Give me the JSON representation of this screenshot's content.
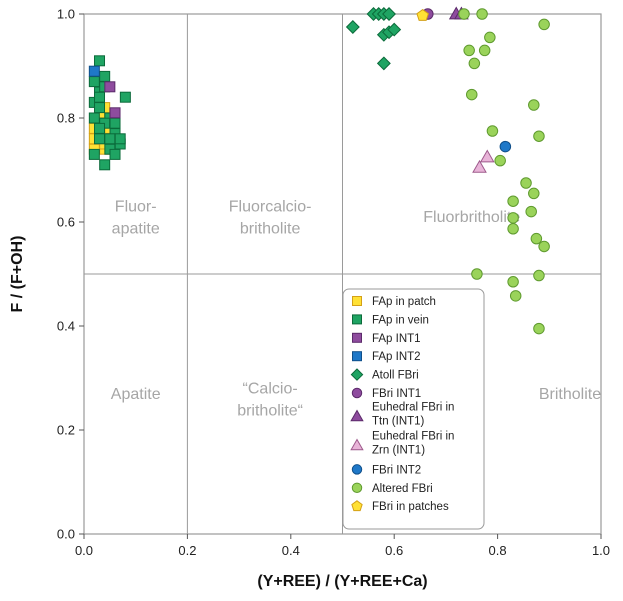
{
  "chart_data": {
    "type": "scatter",
    "xlabel": "(Y+REE) / (Y+REE+Ca)",
    "ylabel": "F / (F+OH)",
    "xlim": [
      0,
      1
    ],
    "ylim": [
      0,
      1
    ],
    "xticks": [
      "0.0",
      "0.2",
      "0.4",
      "0.6",
      "0.8",
      "1.0"
    ],
    "yticks": [
      "0.0",
      "0.2",
      "0.4",
      "0.6",
      "0.8",
      "1.0"
    ],
    "grid": "field boundary lines at x=0.2, x=0.5, y=0.5",
    "legend_position": "bottom-right, inside plot",
    "field_labels": [
      {
        "lines": [
          "Fluor-",
          "apatite"
        ],
        "x": 0.1,
        "y": 0.62
      },
      {
        "lines": [
          "Fluorcalcio-",
          "britholite"
        ],
        "x": 0.36,
        "y": 0.62
      },
      {
        "lines": [
          "Fluorbritholite"
        ],
        "x": 0.75,
        "y": 0.6
      },
      {
        "lines": [
          "Apatite"
        ],
        "x": 0.1,
        "y": 0.26
      },
      {
        "lines": [
          "“Calcio-",
          "britholite“"
        ],
        "x": 0.36,
        "y": 0.27
      },
      {
        "lines": [
          "Britholite"
        ],
        "x": 0.94,
        "y": 0.26
      }
    ],
    "series": [
      {
        "name": "FAp in patch",
        "marker": "square",
        "fill": "#ffe135",
        "stroke": "#d4a017",
        "points": [
          [
            0.02,
            0.78
          ],
          [
            0.03,
            0.8
          ],
          [
            0.04,
            0.82
          ],
          [
            0.02,
            0.76
          ],
          [
            0.03,
            0.75
          ],
          [
            0.04,
            0.74
          ],
          [
            0.05,
            0.78
          ],
          [
            0.02,
            0.74
          ],
          [
            0.03,
            0.81
          ],
          [
            0.04,
            0.75
          ]
        ]
      },
      {
        "name": "FAp in vein",
        "marker": "square",
        "fill": "#1fa463",
        "stroke": "#0b6a3a",
        "points": [
          [
            0.03,
            0.91
          ],
          [
            0.02,
            0.87
          ],
          [
            0.03,
            0.85
          ],
          [
            0.04,
            0.88
          ],
          [
            0.02,
            0.83
          ],
          [
            0.03,
            0.82
          ],
          [
            0.05,
            0.8
          ],
          [
            0.04,
            0.79
          ],
          [
            0.06,
            0.77
          ],
          [
            0.07,
            0.75
          ],
          [
            0.03,
            0.76
          ],
          [
            0.02,
            0.73
          ],
          [
            0.04,
            0.71
          ],
          [
            0.05,
            0.74
          ],
          [
            0.06,
            0.73
          ],
          [
            0.08,
            0.84
          ],
          [
            0.03,
            0.84
          ],
          [
            0.02,
            0.8
          ],
          [
            0.05,
            0.76
          ],
          [
            0.07,
            0.76
          ],
          [
            0.04,
            0.86
          ],
          [
            0.06,
            0.79
          ],
          [
            0.03,
            0.78
          ]
        ]
      },
      {
        "name": "FAp INT1",
        "marker": "square",
        "fill": "#8e4c9e",
        "stroke": "#5b2a6a",
        "points": [
          [
            0.05,
            0.86
          ],
          [
            0.06,
            0.81
          ]
        ]
      },
      {
        "name": "FAp INT2",
        "marker": "square",
        "fill": "#1f78c8",
        "stroke": "#0f4f8a",
        "points": [
          [
            0.02,
            0.89
          ]
        ]
      },
      {
        "name": "Atoll FBri",
        "marker": "diamond",
        "fill": "#1fa463",
        "stroke": "#0b6a3a",
        "points": [
          [
            0.52,
            0.975
          ],
          [
            0.56,
            1.0
          ],
          [
            0.57,
            1.0
          ],
          [
            0.58,
            1.0
          ],
          [
            0.59,
            1.0
          ],
          [
            0.58,
            0.96
          ],
          [
            0.59,
            0.965
          ],
          [
            0.6,
            0.97
          ],
          [
            0.58,
            0.905
          ]
        ]
      },
      {
        "name": "FBri INT1",
        "marker": "circle",
        "fill": "#8e4c9e",
        "stroke": "#5b2a6a",
        "points": [
          [
            0.665,
            1.0
          ]
        ]
      },
      {
        "name": "Euhedral FBri in Ttn (INT1)",
        "marker": "triangle",
        "fill": "#8e4c9e",
        "stroke": "#5b2a6a",
        "points": [
          [
            0.72,
            1.0
          ],
          [
            0.73,
            1.0
          ]
        ]
      },
      {
        "name": "Euhedral FBri in Zrn (INT1)",
        "marker": "triangle",
        "fill": "#e8b4d8",
        "stroke": "#9e5a8c",
        "points": [
          [
            0.765,
            0.705
          ],
          [
            0.78,
            0.725
          ]
        ]
      },
      {
        "name": "FBri INT2",
        "marker": "circle",
        "fill": "#1f78c8",
        "stroke": "#0f4f8a",
        "points": [
          [
            0.815,
            0.745
          ]
        ]
      },
      {
        "name": "Altered FBri",
        "marker": "circle",
        "fill": "#9ad35a",
        "stroke": "#5f9a2f",
        "points": [
          [
            0.735,
            1.0
          ],
          [
            0.77,
            1.0
          ],
          [
            0.89,
            0.98
          ],
          [
            0.775,
            0.93
          ],
          [
            0.785,
            0.955
          ],
          [
            0.745,
            0.93
          ],
          [
            0.755,
            0.905
          ],
          [
            0.75,
            0.845
          ],
          [
            0.87,
            0.825
          ],
          [
            0.88,
            0.765
          ],
          [
            0.79,
            0.775
          ],
          [
            0.805,
            0.718
          ],
          [
            0.855,
            0.675
          ],
          [
            0.87,
            0.655
          ],
          [
            0.83,
            0.64
          ],
          [
            0.865,
            0.62
          ],
          [
            0.83,
            0.608
          ],
          [
            0.83,
            0.587
          ],
          [
            0.875,
            0.568
          ],
          [
            0.89,
            0.553
          ],
          [
            0.76,
            0.5
          ],
          [
            0.83,
            0.485
          ],
          [
            0.88,
            0.497
          ],
          [
            0.835,
            0.458
          ],
          [
            0.88,
            0.395
          ]
        ]
      },
      {
        "name": "FBri in patches",
        "marker": "pentagon",
        "fill": "#ffe135",
        "stroke": "#d4a017",
        "points": [
          [
            0.655,
            0.997
          ]
        ]
      }
    ],
    "legend": [
      "FAp in patch",
      "FAp in vein",
      "FAp INT1",
      "FAp INT2",
      "Atoll FBri",
      "FBri INT1",
      [
        "Euhedral FBri in",
        "Ttn (INT1)"
      ],
      [
        "Euhedral FBri in",
        "Zrn (INT1)"
      ],
      "FBri INT2",
      "Altered FBri",
      "FBri in patches"
    ]
  }
}
